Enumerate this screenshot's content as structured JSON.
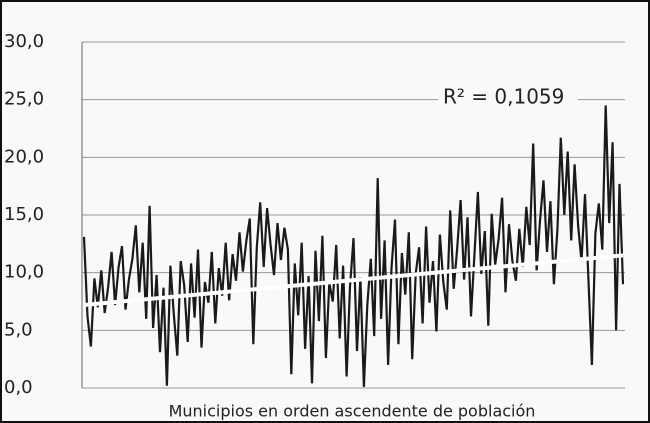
{
  "chart_data": {
    "type": "line",
    "xlabel": "Municipios  en orden  ascendente de población",
    "annotation": "R² = 0,1059",
    "ylim": [
      0,
      30
    ],
    "yticks": [
      {
        "value": 0,
        "label": "0,0"
      },
      {
        "value": 5,
        "label": "5,0"
      },
      {
        "value": 10,
        "label": "10,0"
      },
      {
        "value": 15,
        "label": "15,0"
      },
      {
        "value": 20,
        "label": "20,0"
      },
      {
        "value": 25,
        "label": "25,0"
      },
      {
        "value": 30,
        "label": "30,0"
      }
    ],
    "grid": true,
    "series": [
      {
        "color": "#1a1a1a",
        "values": [
          13.1,
          6.2,
          3.6,
          9.5,
          7.0,
          10.2,
          6.5,
          8.8,
          11.8,
          7.2,
          10.5,
          12.3,
          6.8,
          9.4,
          11.2,
          14.1,
          8.3,
          12.6,
          6.0,
          15.8,
          5.2,
          9.8,
          3.1,
          8.7,
          0.2,
          10.6,
          6.4,
          2.8,
          11.0,
          8.9,
          4.0,
          10.8,
          6.1,
          12.0,
          3.5,
          9.2,
          7.4,
          11.8,
          5.6,
          10.4,
          8.0,
          12.6,
          7.6,
          11.6,
          9.3,
          13.5,
          10.1,
          12.8,
          14.7,
          3.8,
          12.2,
          16.1,
          10.5,
          15.6,
          12.4,
          9.8,
          14.3,
          11.1,
          13.9,
          12.0,
          1.2,
          10.8,
          6.3,
          12.6,
          3.4,
          9.7,
          0.4,
          11.9,
          5.8,
          13.2,
          2.6,
          9.1,
          7.5,
          12.4,
          4.3,
          10.6,
          1.0,
          8.8,
          13.0,
          3.2,
          9.6,
          0.1,
          7.2,
          11.2,
          4.5,
          18.2,
          6.0,
          12.8,
          2.0,
          10.4,
          14.6,
          3.8,
          11.7,
          8.1,
          13.5,
          2.5,
          9.9,
          12.2,
          5.6,
          14.0,
          7.4,
          11.0,
          4.9,
          13.3,
          9.2,
          6.8,
          15.4,
          8.6,
          12.1,
          16.3,
          9.4,
          14.8,
          6.2,
          11.5,
          17.0,
          9.9,
          13.6,
          5.4,
          15.1,
          10.7,
          12.9,
          16.5,
          8.3,
          14.2,
          11.0,
          9.3,
          13.8,
          10.5,
          15.7,
          12.4,
          21.2,
          10.2,
          14.6,
          18.0,
          11.8,
          16.2,
          9.0,
          13.7,
          21.7,
          15.0,
          20.5,
          12.8,
          19.4,
          14.1,
          11.0,
          16.8,
          9.5,
          2.0,
          13.4,
          16.0,
          12.0,
          24.5,
          14.3,
          21.3,
          5.0,
          17.7,
          9.0
        ]
      }
    ],
    "trendline": {
      "start": 7.2,
      "end": 11.5,
      "color": "#ffffff"
    }
  }
}
